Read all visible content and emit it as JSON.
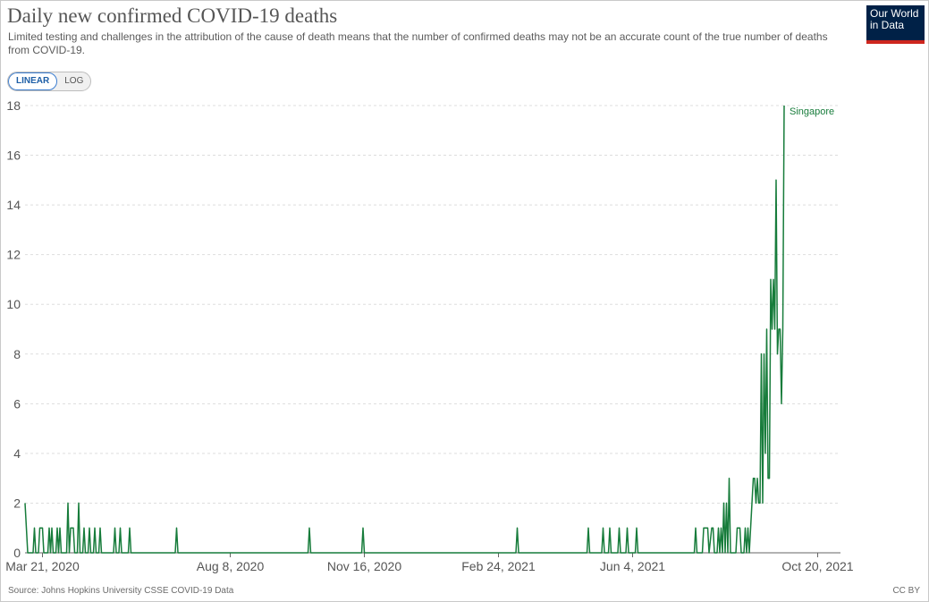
{
  "header": {
    "title": "Daily new confirmed COVID-19 deaths",
    "subtitle": "Limited testing and challenges in the attribution of the cause of death means that the number of confirmed deaths may not be an accurate count of the true number of deaths from COVID-19."
  },
  "logo": {
    "line1": "Our World",
    "line2": "in Data"
  },
  "scale_toggle": {
    "linear": "LINEAR",
    "log": "LOG",
    "selected": "LINEAR"
  },
  "footer": {
    "source": "Source: Johns Hopkins University CSSE COVID-19 Data",
    "license": "CC BY"
  },
  "colors": {
    "series": "#177c3b",
    "grid": "#dddddd",
    "axis": "#666666",
    "text": "#555555"
  },
  "chart_data": {
    "type": "line",
    "title": "Daily new confirmed COVID-19 deaths",
    "xlabel": "",
    "ylabel": "",
    "xlim": [
      "2020-03-08",
      "2021-11-06"
    ],
    "ylim": [
      0,
      18
    ],
    "yticks": [
      0,
      2,
      4,
      6,
      8,
      10,
      12,
      14,
      16,
      18
    ],
    "xticks": [
      "2020-03-21",
      "2020-08-08",
      "2020-11-16",
      "2021-02-24",
      "2021-06-04",
      "2021-10-20"
    ],
    "xtick_labels": [
      "Mar 21, 2020",
      "Aug 8, 2020",
      "Nov 16, 2020",
      "Feb 24, 2021",
      "Jun 4, 2021",
      "Oct 20, 2021"
    ],
    "grid": "horizontal",
    "legend": "inline label at end of line",
    "series": [
      {
        "name": "Singapore",
        "points": [
          [
            "2020-03-08",
            2
          ],
          [
            "2020-03-10",
            0
          ],
          [
            "2020-03-14",
            0
          ],
          [
            "2020-03-15",
            1
          ],
          [
            "2020-03-16",
            0
          ],
          [
            "2020-03-18",
            0
          ],
          [
            "2020-03-19",
            1
          ],
          [
            "2020-03-21",
            1
          ],
          [
            "2020-03-22",
            0
          ],
          [
            "2020-03-25",
            0
          ],
          [
            "2020-03-26",
            1
          ],
          [
            "2020-03-27",
            0
          ],
          [
            "2020-03-28",
            1
          ],
          [
            "2020-03-29",
            0
          ],
          [
            "2020-03-31",
            0
          ],
          [
            "2020-04-01",
            1
          ],
          [
            "2020-04-02",
            0
          ],
          [
            "2020-04-03",
            1
          ],
          [
            "2020-04-04",
            0
          ],
          [
            "2020-04-08",
            0
          ],
          [
            "2020-04-09",
            2
          ],
          [
            "2020-04-10",
            0
          ],
          [
            "2020-04-11",
            1
          ],
          [
            "2020-04-13",
            1
          ],
          [
            "2020-04-14",
            0
          ],
          [
            "2020-04-16",
            0
          ],
          [
            "2020-04-17",
            2
          ],
          [
            "2020-04-18",
            0
          ],
          [
            "2020-04-20",
            0
          ],
          [
            "2020-04-21",
            1
          ],
          [
            "2020-04-22",
            0
          ],
          [
            "2020-04-24",
            0
          ],
          [
            "2020-04-25",
            1
          ],
          [
            "2020-04-26",
            0
          ],
          [
            "2020-04-28",
            0
          ],
          [
            "2020-04-29",
            1
          ],
          [
            "2020-04-30",
            0
          ],
          [
            "2020-05-02",
            0
          ],
          [
            "2020-05-03",
            1
          ],
          [
            "2020-05-04",
            0
          ],
          [
            "2020-05-13",
            0
          ],
          [
            "2020-05-14",
            1
          ],
          [
            "2020-05-15",
            0
          ],
          [
            "2020-05-17",
            0
          ],
          [
            "2020-05-18",
            1
          ],
          [
            "2020-05-19",
            0
          ],
          [
            "2020-05-24",
            0
          ],
          [
            "2020-05-25",
            1
          ],
          [
            "2020-05-26",
            0
          ],
          [
            "2020-06-28",
            0
          ],
          [
            "2020-06-29",
            1
          ],
          [
            "2020-06-30",
            0
          ],
          [
            "2020-10-05",
            0
          ],
          [
            "2020-10-06",
            1
          ],
          [
            "2020-10-07",
            0
          ],
          [
            "2020-11-14",
            0
          ],
          [
            "2020-11-15",
            1
          ],
          [
            "2020-11-16",
            0
          ],
          [
            "2021-03-09",
            0
          ],
          [
            "2021-03-10",
            1
          ],
          [
            "2021-03-11",
            0
          ],
          [
            "2021-05-01",
            0
          ],
          [
            "2021-05-02",
            1
          ],
          [
            "2021-05-03",
            0
          ],
          [
            "2021-05-12",
            0
          ],
          [
            "2021-05-13",
            1
          ],
          [
            "2021-05-14",
            0
          ],
          [
            "2021-05-17",
            0
          ],
          [
            "2021-05-18",
            1
          ],
          [
            "2021-05-19",
            0
          ],
          [
            "2021-05-24",
            0
          ],
          [
            "2021-05-25",
            1
          ],
          [
            "2021-05-26",
            0
          ],
          [
            "2021-05-30",
            0
          ],
          [
            "2021-05-31",
            1
          ],
          [
            "2021-06-01",
            0
          ],
          [
            "2021-06-06",
            0
          ],
          [
            "2021-06-07",
            1
          ],
          [
            "2021-06-08",
            0
          ],
          [
            "2021-07-20",
            0
          ],
          [
            "2021-07-21",
            1
          ],
          [
            "2021-07-22",
            0
          ],
          [
            "2021-07-26",
            0
          ],
          [
            "2021-07-27",
            1
          ],
          [
            "2021-07-30",
            1
          ],
          [
            "2021-07-31",
            0
          ],
          [
            "2021-08-02",
            1
          ],
          [
            "2021-08-03",
            1
          ],
          [
            "2021-08-04",
            0
          ],
          [
            "2021-08-06",
            0
          ],
          [
            "2021-08-07",
            1
          ],
          [
            "2021-08-08",
            0
          ],
          [
            "2021-08-09",
            1
          ],
          [
            "2021-08-10",
            0
          ],
          [
            "2021-08-11",
            2
          ],
          [
            "2021-08-12",
            0
          ],
          [
            "2021-08-13",
            2
          ],
          [
            "2021-08-14",
            0
          ],
          [
            "2021-08-15",
            3
          ],
          [
            "2021-08-16",
            0
          ],
          [
            "2021-08-20",
            0
          ],
          [
            "2021-08-21",
            1
          ],
          [
            "2021-08-23",
            1
          ],
          [
            "2021-08-24",
            0
          ],
          [
            "2021-08-26",
            0
          ],
          [
            "2021-08-27",
            1
          ],
          [
            "2021-08-28",
            0
          ],
          [
            "2021-08-29",
            1
          ],
          [
            "2021-08-30",
            0
          ],
          [
            "2021-08-31",
            1
          ],
          [
            "2021-09-01",
            2
          ],
          [
            "2021-09-02",
            3
          ],
          [
            "2021-09-03",
            3
          ],
          [
            "2021-09-04",
            2
          ],
          [
            "2021-09-05",
            3
          ],
          [
            "2021-09-06",
            2
          ],
          [
            "2021-09-07",
            2
          ],
          [
            "2021-09-08",
            8
          ],
          [
            "2021-09-09",
            2
          ],
          [
            "2021-09-10",
            8
          ],
          [
            "2021-09-11",
            4
          ],
          [
            "2021-09-12",
            9
          ],
          [
            "2021-09-13",
            3
          ],
          [
            "2021-09-14",
            3
          ],
          [
            "2021-09-15",
            11
          ],
          [
            "2021-09-16",
            9
          ],
          [
            "2021-09-17",
            11
          ],
          [
            "2021-09-18",
            9
          ],
          [
            "2021-09-19",
            15
          ],
          [
            "2021-09-20",
            8
          ],
          [
            "2021-09-21",
            9
          ],
          [
            "2021-09-22",
            9
          ],
          [
            "2021-09-23",
            6
          ],
          [
            "2021-09-24",
            9
          ],
          [
            "2021-09-25",
            18
          ]
        ]
      }
    ]
  }
}
